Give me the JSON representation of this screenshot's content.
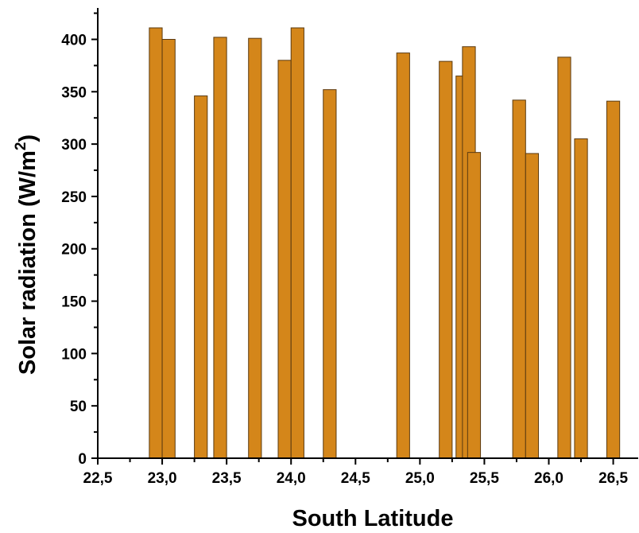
{
  "chart_data": {
    "type": "bar",
    "xlabel": "South Latitude",
    "ylabel_main": "Solar radiation (W/m",
    "ylabel_sup": "2",
    "ylabel_close": ")",
    "xlim": [
      22.5,
      26.7
    ],
    "ylim": [
      0,
      430
    ],
    "xticks": [
      22.5,
      23.0,
      23.5,
      24.0,
      24.5,
      25.0,
      25.5,
      26.0,
      26.5
    ],
    "xtick_labels": [
      "22,5",
      "23,0",
      "23,5",
      "24,0",
      "24,5",
      "25,0",
      "25,5",
      "26,0",
      "26,5"
    ],
    "yticks": [
      0,
      50,
      100,
      150,
      200,
      250,
      300,
      350,
      400
    ],
    "ytick_labels": [
      "0",
      "50",
      "100",
      "150",
      "200",
      "250",
      "300",
      "350",
      "400"
    ],
    "bar_color": "#d4861a",
    "bar_width": 0.1,
    "grid": false,
    "bars": [
      {
        "x": 22.95,
        "value": 411
      },
      {
        "x": 23.05,
        "value": 400
      },
      {
        "x": 23.3,
        "value": 346
      },
      {
        "x": 23.45,
        "value": 402
      },
      {
        "x": 23.72,
        "value": 401
      },
      {
        "x": 23.95,
        "value": 380
      },
      {
        "x": 24.05,
        "value": 411
      },
      {
        "x": 24.3,
        "value": 352
      },
      {
        "x": 24.87,
        "value": 387
      },
      {
        "x": 25.2,
        "value": 379
      },
      {
        "x": 25.33,
        "value": 365
      },
      {
        "x": 25.38,
        "value": 393
      },
      {
        "x": 25.42,
        "value": 292
      },
      {
        "x": 25.77,
        "value": 342
      },
      {
        "x": 25.87,
        "value": 291
      },
      {
        "x": 26.12,
        "value": 383
      },
      {
        "x": 26.25,
        "value": 305
      },
      {
        "x": 26.5,
        "value": 341
      }
    ]
  }
}
